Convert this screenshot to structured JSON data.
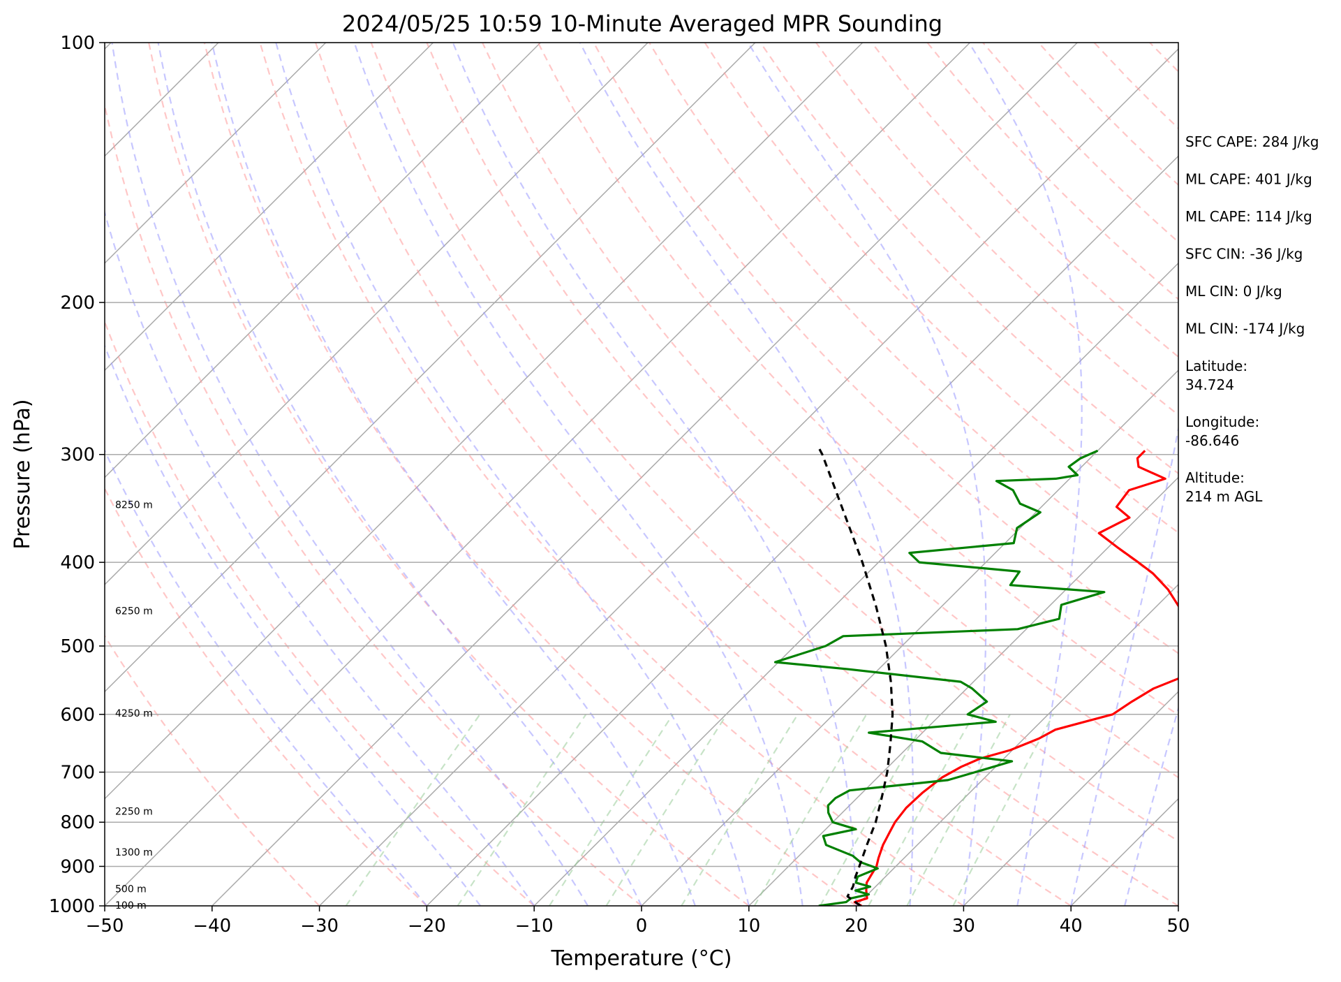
{
  "chart_data": {
    "type": "line",
    "subtype": "skew-t log-p sounding",
    "title": "2024/05/25 10:59 10-Minute Averaged MPR Sounding",
    "xlabel": "Temperature (°C)",
    "ylabel": "Pressure (hPa)",
    "xlim": [
      -50,
      50
    ],
    "ylim": [
      1000,
      100
    ],
    "y_scale": "log",
    "x_ticks": [
      -50,
      -40,
      -30,
      -20,
      -10,
      0,
      10,
      20,
      30,
      40,
      50
    ],
    "y_ticks": [
      100,
      200,
      300,
      400,
      500,
      600,
      700,
      800,
      900,
      1000
    ],
    "grid": "horizontal isobars",
    "background_lines": [
      "dry adiabats (red dashed)",
      "moist adiabats (blue dashed)",
      "mixing ratio lines (green dashed)",
      "skewed isotherms (gray)"
    ],
    "colors": {
      "temperature": "#ff0000",
      "dewpoint": "#008000",
      "parcel": "#000000",
      "dry_adiabat": "#ff9999",
      "moist_adiabat": "#9999ff",
      "mixing_ratio": "#99cc99",
      "isotherm": "#aaaaaa",
      "isobar": "#aaaaaa"
    },
    "series": [
      {
        "key": "temperature",
        "points": [
          [
            1000,
            20.5
          ],
          [
            990,
            19.5
          ],
          [
            980,
            20.3
          ],
          [
            960,
            19.5
          ],
          [
            940,
            18.8
          ],
          [
            920,
            18.5
          ],
          [
            900,
            18.2
          ],
          [
            880,
            17.6
          ],
          [
            850,
            16.8
          ],
          [
            820,
            16.2
          ],
          [
            800,
            15.8
          ],
          [
            770,
            15.5
          ],
          [
            740,
            15.6
          ],
          [
            710,
            16.0
          ],
          [
            690,
            16.8
          ],
          [
            675,
            17.8
          ],
          [
            660,
            19.8
          ],
          [
            640,
            21.4
          ],
          [
            625,
            22.1
          ],
          [
            610,
            24.4
          ],
          [
            600,
            26.0
          ],
          [
            580,
            26.6
          ],
          [
            560,
            27.4
          ],
          [
            540,
            29.3
          ],
          [
            525,
            30.5
          ],
          [
            505,
            28.3
          ],
          [
            490,
            25.2
          ],
          [
            478,
            25.5
          ],
          [
            465,
            24.6
          ],
          [
            450,
            22.1
          ],
          [
            430,
            19.5
          ],
          [
            412,
            16.6
          ],
          [
            400,
            14.2
          ],
          [
            385,
            11.0
          ],
          [
            370,
            7.8
          ],
          [
            355,
            9.2
          ],
          [
            345,
            7.0
          ],
          [
            330,
            6.6
          ],
          [
            320,
            8.9
          ],
          [
            310,
            5.3
          ],
          [
            303,
            4.4
          ],
          [
            297,
            4.4
          ]
        ]
      },
      {
        "key": "dewpoint",
        "points": [
          [
            1000,
            16.5
          ],
          [
            990,
            18.7
          ],
          [
            980,
            18.8
          ],
          [
            970,
            20.1
          ],
          [
            960,
            18.5
          ],
          [
            950,
            19.5
          ],
          [
            940,
            17.8
          ],
          [
            925,
            17.4
          ],
          [
            905,
            18.5
          ],
          [
            890,
            16.3
          ],
          [
            875,
            15.0
          ],
          [
            850,
            11.5
          ],
          [
            830,
            10.4
          ],
          [
            815,
            12.8
          ],
          [
            800,
            10.0
          ],
          [
            780,
            8.7
          ],
          [
            765,
            8.0
          ],
          [
            750,
            8.0
          ],
          [
            735,
            8.6
          ],
          [
            715,
            16.8
          ],
          [
            695,
            19.2
          ],
          [
            680,
            21.0
          ],
          [
            665,
            13.6
          ],
          [
            645,
            10.8
          ],
          [
            630,
            5.0
          ],
          [
            612,
            15.8
          ],
          [
            600,
            12.5
          ],
          [
            580,
            13.1
          ],
          [
            560,
            10.5
          ],
          [
            550,
            8.8
          ],
          [
            532,
            -2.8
          ],
          [
            522,
            -10.3
          ],
          [
            500,
            -7.1
          ],
          [
            487,
            -6.4
          ],
          [
            478,
            9.2
          ],
          [
            465,
            12.1
          ],
          [
            448,
            11.0
          ],
          [
            433,
            13.8
          ],
          [
            425,
            4.4
          ],
          [
            410,
            4.0
          ],
          [
            400,
            -6.2
          ],
          [
            390,
            -8.0
          ],
          [
            380,
            0.8
          ],
          [
            365,
            -0.3
          ],
          [
            350,
            0.4
          ],
          [
            342,
            -2.3
          ],
          [
            330,
            -4.2
          ],
          [
            322,
            -6.6
          ],
          [
            320,
            -1.3
          ],
          [
            317,
            0.4
          ],
          [
            310,
            -1.2
          ],
          [
            303,
            -0.9
          ],
          [
            297,
            0.0
          ]
        ]
      },
      {
        "key": "parcel",
        "points": [
          [
            1000,
            20.4
          ],
          [
            975,
            18.3
          ],
          [
            950,
            17.9
          ],
          [
            925,
            17.2
          ],
          [
            900,
            16.6
          ],
          [
            850,
            15.3
          ],
          [
            800,
            14.0
          ],
          [
            750,
            12.3
          ],
          [
            700,
            10.4
          ],
          [
            650,
            8.1
          ],
          [
            600,
            5.5
          ],
          [
            550,
            2.3
          ],
          [
            500,
            -1.5
          ],
          [
            450,
            -6.1
          ],
          [
            400,
            -11.5
          ],
          [
            350,
            -17.9
          ],
          [
            300,
            -25.3
          ],
          [
            295,
            -26.2
          ]
        ]
      }
    ],
    "height_labels": [
      {
        "pressure": 998,
        "text": "100 m"
      },
      {
        "pressure": 955,
        "text": "500 m"
      },
      {
        "pressure": 866,
        "text": "1300 m"
      },
      {
        "pressure": 777,
        "text": "2250 m"
      },
      {
        "pressure": 598,
        "text": "4250 m"
      },
      {
        "pressure": 455,
        "text": "6250 m"
      },
      {
        "pressure": 343,
        "text": "8250 m"
      }
    ],
    "annotations": [
      "SFC CAPE: 284 J/kg",
      "ML CAPE: 401 J/kg",
      "ML CAPE: 114 J/kg",
      "SFC CIN: -36 J/kg",
      "ML CIN: 0 J/kg",
      "ML CIN: -174 J/kg",
      "Latitude:\n34.724",
      "Longitude:\n-86.646",
      "Altitude:\n214 m AGL"
    ]
  }
}
